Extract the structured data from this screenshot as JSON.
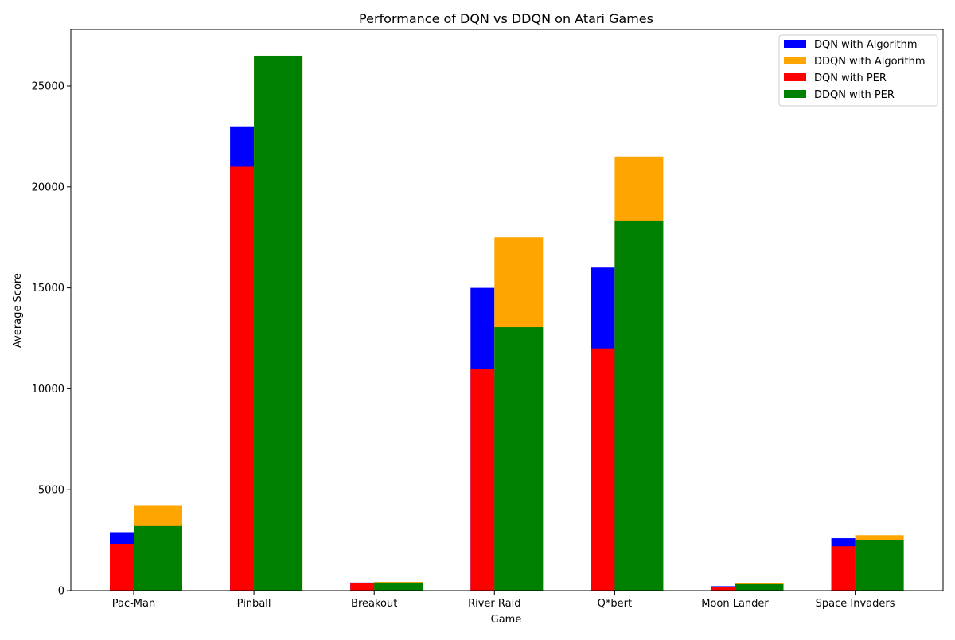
{
  "chart_data": {
    "type": "bar",
    "title": "Performance of DQN vs DDQN on Atari Games",
    "xlabel": "Game",
    "ylabel": "Average Score",
    "ylim": [
      0,
      27800
    ],
    "yticks": [
      0,
      5000,
      10000,
      15000,
      20000,
      25000
    ],
    "grid": false,
    "legend_position": "top-right",
    "categories": [
      "Pac-Man",
      "Pinball",
      "Breakout",
      "River Raid",
      "Q*bert",
      "Moon Lander",
      "Space Invaders"
    ],
    "series": [
      {
        "name": "DQN with Algorithm",
        "color": "#0000ff",
        "values": [
          2900,
          23000,
          400,
          15000,
          16000,
          220,
          2600
        ]
      },
      {
        "name": "DDQN with Algorithm",
        "color": "#ffa500",
        "values": [
          4200,
          26500,
          430,
          17500,
          21500,
          380,
          2750
        ]
      },
      {
        "name": "DQN with PER",
        "color": "#ff0000",
        "values": [
          2300,
          21000,
          380,
          11000,
          12000,
          180,
          2200
        ]
      },
      {
        "name": "DDQN with PER",
        "color": "#008000",
        "values": [
          3200,
          26500,
          400,
          13050,
          18300,
          320,
          2500
        ]
      }
    ]
  }
}
